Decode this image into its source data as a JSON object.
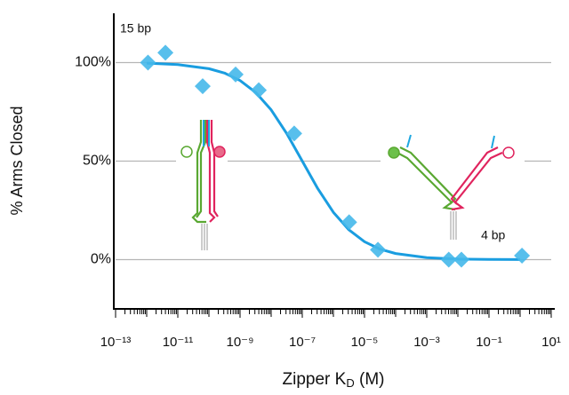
{
  "chart_data": {
    "type": "scatter",
    "log_x": true,
    "grid": true,
    "ylabel": "% Arms Closed",
    "xlabel": {
      "text": "Zipper K",
      "subscript": "D",
      "tail": " (M)"
    },
    "annotations": [
      {
        "text": "15 bp",
        "x": 1e-13,
        "y": 117
      },
      {
        "text": "4 bp",
        "x": 0.04,
        "y": 12
      }
    ],
    "xlim": [
      1e-13,
      10
    ],
    "ylim": [
      -25,
      125
    ],
    "xticks": [
      {
        "value": 1e-13,
        "label": "10⁻¹³"
      },
      {
        "value": 1e-11,
        "label": "10⁻¹¹"
      },
      {
        "value": 1e-09,
        "label": "10⁻⁹"
      },
      {
        "value": 1e-07,
        "label": "10⁻⁷"
      },
      {
        "value": 1e-05,
        "label": "10⁻⁵"
      },
      {
        "value": 0.001,
        "label": "10⁻³"
      },
      {
        "value": 0.1,
        "label": "10⁻¹"
      },
      {
        "value": 10,
        "label": "10¹"
      }
    ],
    "yticks": [
      {
        "value": 0,
        "label": "0%"
      },
      {
        "value": 50,
        "label": "50%"
      },
      {
        "value": 100,
        "label": "100%"
      }
    ],
    "series": [
      {
        "kind": "points",
        "color": "#45b8ea",
        "x": [
          1.1e-12,
          4e-12,
          6.3e-11,
          7.2e-10,
          4e-09,
          5.5e-08,
          3.2e-06,
          2.7e-05,
          0.0051,
          0.013,
          1.15
        ],
        "values": [
          100,
          105,
          88,
          94,
          86,
          64,
          19,
          5,
          0,
          0,
          2
        ]
      },
      {
        "kind": "line",
        "color": "#1a9de0",
        "x": [
          1e-12,
          1e-11,
          1e-10,
          3.16e-10,
          1e-09,
          3.16e-09,
          1e-08,
          3.16e-08,
          1e-07,
          3.16e-07,
          1e-06,
          3.16e-06,
          1e-05,
          3.16e-05,
          0.0001,
          0.001,
          0.01,
          0.1,
          1
        ],
        "values": [
          99.7,
          99.0,
          96.9,
          94.7,
          90.9,
          84.9,
          76.0,
          64.0,
          50,
          36.0,
          24.0,
          15.1,
          9.1,
          5.3,
          3.1,
          1.0,
          0.3,
          0.1,
          0.03
        ]
      }
    ]
  }
}
